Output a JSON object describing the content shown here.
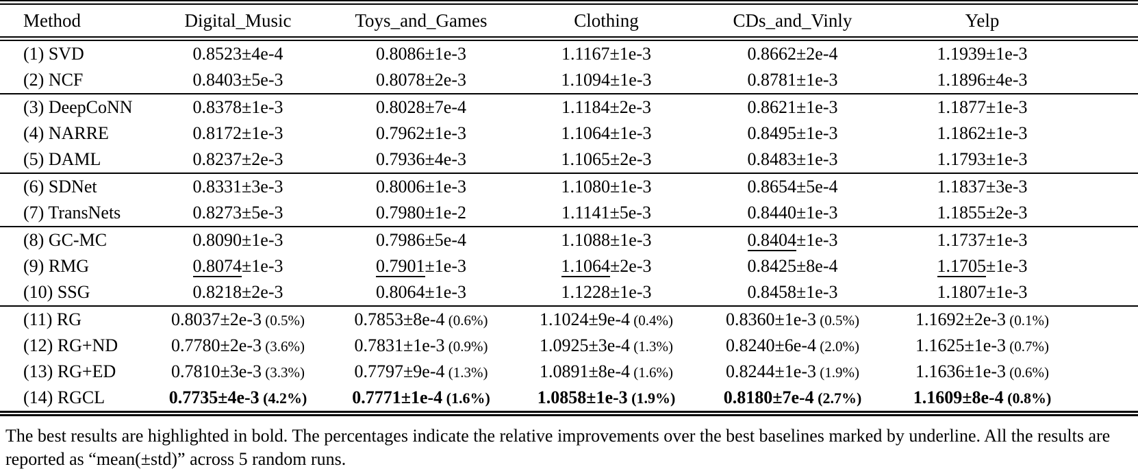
{
  "table": {
    "columns": [
      "Method",
      "Digital_Music",
      "Toys_and_Games",
      "Clothing",
      "CDs_and_Vinly",
      "Yelp"
    ],
    "groups": [
      {
        "rows": [
          {
            "method": "(1) SVD",
            "cells": [
              {
                "v": "0.8523",
                "pm": "±4e-4"
              },
              {
                "v": "0.8086",
                "pm": "±1e-3"
              },
              {
                "v": "1.1167",
                "pm": "±1e-3"
              },
              {
                "v": "0.8662",
                "pm": "±2e-4"
              },
              {
                "v": "1.1939",
                "pm": "±1e-3"
              }
            ]
          },
          {
            "method": "(2) NCF",
            "cells": [
              {
                "v": "0.8403",
                "pm": "±5e-3"
              },
              {
                "v": "0.8078",
                "pm": "±2e-3"
              },
              {
                "v": "1.1094",
                "pm": "±1e-3"
              },
              {
                "v": "0.8781",
                "pm": "±1e-3"
              },
              {
                "v": "1.1896",
                "pm": "±4e-3"
              }
            ]
          }
        ]
      },
      {
        "rows": [
          {
            "method": "(3) DeepCoNN",
            "cells": [
              {
                "v": "0.8378",
                "pm": "±1e-3"
              },
              {
                "v": "0.8028",
                "pm": "±7e-4"
              },
              {
                "v": "1.1184",
                "pm": "±2e-3"
              },
              {
                "v": "0.8621",
                "pm": "±1e-3"
              },
              {
                "v": "1.1877",
                "pm": "±1e-3"
              }
            ]
          },
          {
            "method": "(4) NARRE",
            "cells": [
              {
                "v": "0.8172",
                "pm": "±1e-3"
              },
              {
                "v": "0.7962",
                "pm": "±1e-3"
              },
              {
                "v": "1.1064",
                "pm": "±1e-3"
              },
              {
                "v": "0.8495",
                "pm": "±1e-3"
              },
              {
                "v": "1.1862",
                "pm": "±1e-3"
              }
            ]
          },
          {
            "method": "(5) DAML",
            "cells": [
              {
                "v": "0.8237",
                "pm": "±2e-3"
              },
              {
                "v": "0.7936",
                "pm": "±4e-3"
              },
              {
                "v": "1.1065",
                "pm": "±2e-3"
              },
              {
                "v": "0.8483",
                "pm": "±1e-3"
              },
              {
                "v": "1.1793",
                "pm": "±1e-3"
              }
            ]
          }
        ]
      },
      {
        "rows": [
          {
            "method": "(6) SDNet",
            "cells": [
              {
                "v": "0.8331",
                "pm": "±3e-3"
              },
              {
                "v": "0.8006",
                "pm": "±1e-3"
              },
              {
                "v": "1.1080",
                "pm": "±1e-3"
              },
              {
                "v": "0.8654",
                "pm": "±5e-4"
              },
              {
                "v": "1.1837",
                "pm": "±3e-3"
              }
            ]
          },
          {
            "method": "(7) TransNets",
            "cells": [
              {
                "v": "0.8273",
                "pm": "±5e-3"
              },
              {
                "v": "0.7980",
                "pm": "±1e-2"
              },
              {
                "v": "1.1141",
                "pm": "±5e-3"
              },
              {
                "v": "0.8440",
                "pm": "±1e-3"
              },
              {
                "v": "1.1855",
                "pm": "±2e-3"
              }
            ]
          }
        ]
      },
      {
        "rows": [
          {
            "method": "(8) GC-MC",
            "cells": [
              {
                "v": "0.8090",
                "pm": "±1e-3"
              },
              {
                "v": "0.7986",
                "pm": "±5e-4"
              },
              {
                "v": "1.1088",
                "pm": "±1e-3"
              },
              {
                "v": "0.8404",
                "pm": "±1e-3",
                "u": true
              },
              {
                "v": "1.1737",
                "pm": "±1e-3"
              }
            ]
          },
          {
            "method": "(9) RMG",
            "cells": [
              {
                "v": "0.8074",
                "pm": "±1e-3",
                "u": true
              },
              {
                "v": "0.7901",
                "pm": "±1e-3",
                "u": true
              },
              {
                "v": "1.1064",
                "pm": "±2e-3",
                "u": true
              },
              {
                "v": "0.8425",
                "pm": "±8e-4"
              },
              {
                "v": "1.1705",
                "pm": "±1e-3",
                "u": true
              }
            ]
          },
          {
            "method": "(10) SSG",
            "cells": [
              {
                "v": "0.8218",
                "pm": "±2e-3"
              },
              {
                "v": "0.8064",
                "pm": "±1e-3"
              },
              {
                "v": "1.1228",
                "pm": "±1e-3"
              },
              {
                "v": "0.8458",
                "pm": "±1e-3"
              },
              {
                "v": "1.1807",
                "pm": "±1e-3"
              }
            ]
          }
        ]
      },
      {
        "rows": [
          {
            "method": "(11) RG",
            "cells": [
              {
                "v": "0.8037",
                "pm": "±2e-3",
                "pct": "(0.5%)"
              },
              {
                "v": "0.7853",
                "pm": "±8e-4",
                "pct": "(0.6%)"
              },
              {
                "v": "1.1024",
                "pm": "±9e-4",
                "pct": "(0.4%)"
              },
              {
                "v": "0.8360",
                "pm": "±1e-3",
                "pct": "(0.5%)"
              },
              {
                "v": "1.1692",
                "pm": "±2e-3",
                "pct": "(0.1%)"
              }
            ]
          },
          {
            "method": "(12) RG+ND",
            "cells": [
              {
                "v": "0.7780",
                "pm": "±2e-3",
                "pct": "(3.6%)"
              },
              {
                "v": "0.7831",
                "pm": "±1e-3",
                "pct": "(0.9%)"
              },
              {
                "v": "1.0925",
                "pm": "±3e-4",
                "pct": "(1.3%)"
              },
              {
                "v": "0.8240",
                "pm": "±6e-4",
                "pct": "(2.0%)"
              },
              {
                "v": "1.1625",
                "pm": "±1e-3",
                "pct": "(0.7%)"
              }
            ]
          },
          {
            "method": "(13) RG+ED",
            "cells": [
              {
                "v": "0.7810",
                "pm": "±3e-3",
                "pct": "(3.3%)"
              },
              {
                "v": "0.7797",
                "pm": "±9e-4",
                "pct": "(1.3%)"
              },
              {
                "v": "1.0891",
                "pm": "±8e-4",
                "pct": "(1.6%)"
              },
              {
                "v": "0.8244",
                "pm": "±1e-3",
                "pct": "(1.9%)"
              },
              {
                "v": "1.1636",
                "pm": "±1e-3",
                "pct": "(0.6%)"
              }
            ]
          },
          {
            "method": "(14) RGCL",
            "cells": [
              {
                "v": "0.7735",
                "pm": "±4e-3",
                "pct": "(4.2%)",
                "b": true
              },
              {
                "v": "0.7771",
                "pm": "±1e-4",
                "pct": "(1.6%)",
                "b": true
              },
              {
                "v": "1.0858",
                "pm": "±1e-3",
                "pct": "(1.9%)",
                "b": true
              },
              {
                "v": "0.8180",
                "pm": "±7e-4",
                "pct": "(2.7%)",
                "b": true
              },
              {
                "v": "1.1609",
                "pm": "±8e-4",
                "pct": "(0.8%)",
                "b": true
              }
            ]
          }
        ]
      }
    ]
  },
  "footnote": "The best results are highlighted in bold. The percentages indicate the relative improvements over the best baselines marked by underline. All the results are reported as “mean(±std)” across 5 random runs."
}
